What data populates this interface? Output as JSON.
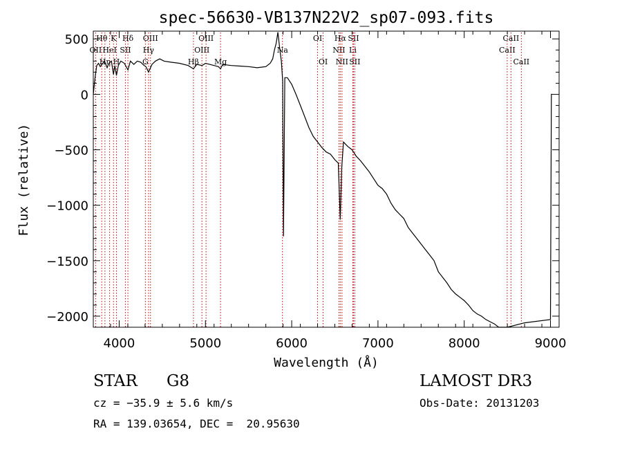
{
  "chart_data": {
    "type": "line",
    "title": "spec-56630-VB137N22V2_sp07-093.fits",
    "xlabel": "Wavelength (Å)",
    "ylabel": "Flux (relative)",
    "xlim": [
      3700,
      9100
    ],
    "ylim": [
      -2100,
      570
    ],
    "xticks": [
      4000,
      5000,
      6000,
      7000,
      8000,
      9000
    ],
    "xtick_labels": [
      "4000",
      "5000",
      "6000",
      "7000",
      "8000",
      "9000"
    ],
    "yticks": [
      500,
      0,
      -500,
      -1000,
      -1500,
      -2000
    ],
    "ytick_labels": [
      "500",
      "0",
      "−500",
      "−1000",
      "−1500",
      "−2000"
    ],
    "series": [
      {
        "name": "flux",
        "x": [
          3700,
          3720,
          3740,
          3760,
          3780,
          3800,
          3830,
          3860,
          3880,
          3910,
          3934,
          3950,
          3968,
          3990,
          4020,
          4060,
          4101,
          4130,
          4170,
          4210,
          4250,
          4290,
          4310,
          4340,
          4380,
          4420,
          4470,
          4520,
          4600,
          4700,
          4800,
          4861,
          4900,
          4960,
          5000,
          5050,
          5100,
          5150,
          5175,
          5200,
          5300,
          5400,
          5500,
          5600,
          5700,
          5750,
          5780,
          5800,
          5820,
          5840,
          5860,
          5880,
          5895,
          5905,
          5920,
          5950,
          6000,
          6050,
          6100,
          6150,
          6200,
          6250,
          6300,
          6350,
          6400,
          6450,
          6500,
          6540,
          6563,
          6580,
          6600,
          6650,
          6700,
          6750,
          6800,
          6850,
          6900,
          6950,
          7000,
          7050,
          7100,
          7150,
          7200,
          7250,
          7300,
          7350,
          7400,
          7450,
          7500,
          7550,
          7600,
          7650,
          7700,
          7750,
          7800,
          7850,
          7900,
          7950,
          8000,
          8050,
          8100,
          8150,
          8200,
          8250,
          8300,
          8350,
          8400,
          8450,
          8500,
          8700,
          9000,
          9010,
          9020
        ],
        "y": [
          0,
          150,
          260,
          280,
          250,
          270,
          300,
          240,
          280,
          300,
          180,
          260,
          170,
          260,
          300,
          280,
          220,
          300,
          270,
          300,
          290,
          260,
          250,
          200,
          270,
          300,
          320,
          300,
          290,
          280,
          260,
          230,
          270,
          260,
          280,
          270,
          260,
          250,
          230,
          270,
          260,
          255,
          250,
          240,
          250,
          280,
          320,
          400,
          460,
          560,
          420,
          300,
          120,
          -1280,
          150,
          150,
          90,
          0,
          -100,
          -200,
          -300,
          -380,
          -430,
          -480,
          -520,
          -540,
          -590,
          -620,
          -1130,
          -660,
          -430,
          -470,
          -500,
          -560,
          -600,
          -650,
          -700,
          -760,
          -820,
          -850,
          -900,
          -980,
          -1040,
          -1080,
          -1120,
          -1200,
          -1250,
          -1300,
          -1350,
          -1400,
          -1450,
          -1500,
          -1600,
          -1650,
          -1700,
          -1760,
          -1800,
          -1830,
          -1860,
          -1900,
          -1950,
          -1980,
          -2000,
          -2030,
          -2050,
          -2070,
          -2100,
          -2100,
          -2100,
          -2060,
          -2030,
          0,
          0
        ]
      }
    ],
    "lines": [
      {
        "name": "OII",
        "x": 3727,
        "label": "OII",
        "row": 2
      },
      {
        "name": "H-theta",
        "x": 3798,
        "label": "Hθ",
        "row": 1
      },
      {
        "name": "H-eta",
        "x": 3835,
        "label": "Hη",
        "row": 3
      },
      {
        "name": "HeI",
        "x": 3889,
        "label": "HeI",
        "row": 2
      },
      {
        "name": "K",
        "x": 3934,
        "label": "K",
        "row": 1
      },
      {
        "name": "H",
        "x": 3968,
        "label": "H",
        "row": 3
      },
      {
        "name": "SII-4072",
        "x": 4072,
        "label": "SII",
        "row": 2
      },
      {
        "name": "H-delta",
        "x": 4101,
        "label": "Hδ",
        "row": 1
      },
      {
        "name": "G",
        "x": 4304,
        "label": "G",
        "row": 3
      },
      {
        "name": "OIII-4363",
        "x": 4363,
        "label": "OIII",
        "row": 1
      },
      {
        "name": "H-gamma",
        "x": 4340,
        "label": "Hγ",
        "row": 2
      },
      {
        "name": "H-beta",
        "x": 4861,
        "label": "Hβ",
        "row": 3
      },
      {
        "name": "OIII-4959",
        "x": 4959,
        "label": "OIII",
        "row": 2
      },
      {
        "name": "OIII-5007",
        "x": 5007,
        "label": "OIII",
        "row": 1
      },
      {
        "name": "Mg",
        "x": 5175,
        "label": "Mg",
        "row": 3
      },
      {
        "name": "Na",
        "x": 5893,
        "label": "Na",
        "row": 2
      },
      {
        "name": "OI-6300",
        "x": 6300,
        "label": "OI",
        "row": 1
      },
      {
        "name": "OI-6364",
        "x": 6364,
        "label": "OI",
        "row": 3
      },
      {
        "name": "NII-6548",
        "x": 6548,
        "label": "NII",
        "row": 2
      },
      {
        "name": "H-alpha",
        "x": 6563,
        "label": "Hα",
        "row": 1
      },
      {
        "name": "NII-6583",
        "x": 6583,
        "label": "NII",
        "row": 3
      },
      {
        "name": "Li",
        "x": 6708,
        "label": "Li",
        "row": 2
      },
      {
        "name": "SII-6716",
        "x": 6716,
        "label": "SII",
        "row": 1
      },
      {
        "name": "SII-6731",
        "x": 6731,
        "label": "SII",
        "row": 3
      },
      {
        "name": "CaII-8498",
        "x": 8498,
        "label": "CaII",
        "row": 2
      },
      {
        "name": "CaII-8542",
        "x": 8542,
        "label": "CaII",
        "row": 1
      },
      {
        "name": "CaII-8662",
        "x": 8662,
        "label": "CaII",
        "row": 3
      }
    ],
    "grid": false,
    "line_color": "#000000",
    "marker_color": "#c00000"
  },
  "info": {
    "class": "STAR",
    "subclass": "G8",
    "survey": "LAMOST DR3",
    "cz": "cz = −35.9 ± 5.6 km/s",
    "obs_date": "Obs-Date: 20131203",
    "coords": "RA = 139.03654, DEC =  20.95630"
  }
}
